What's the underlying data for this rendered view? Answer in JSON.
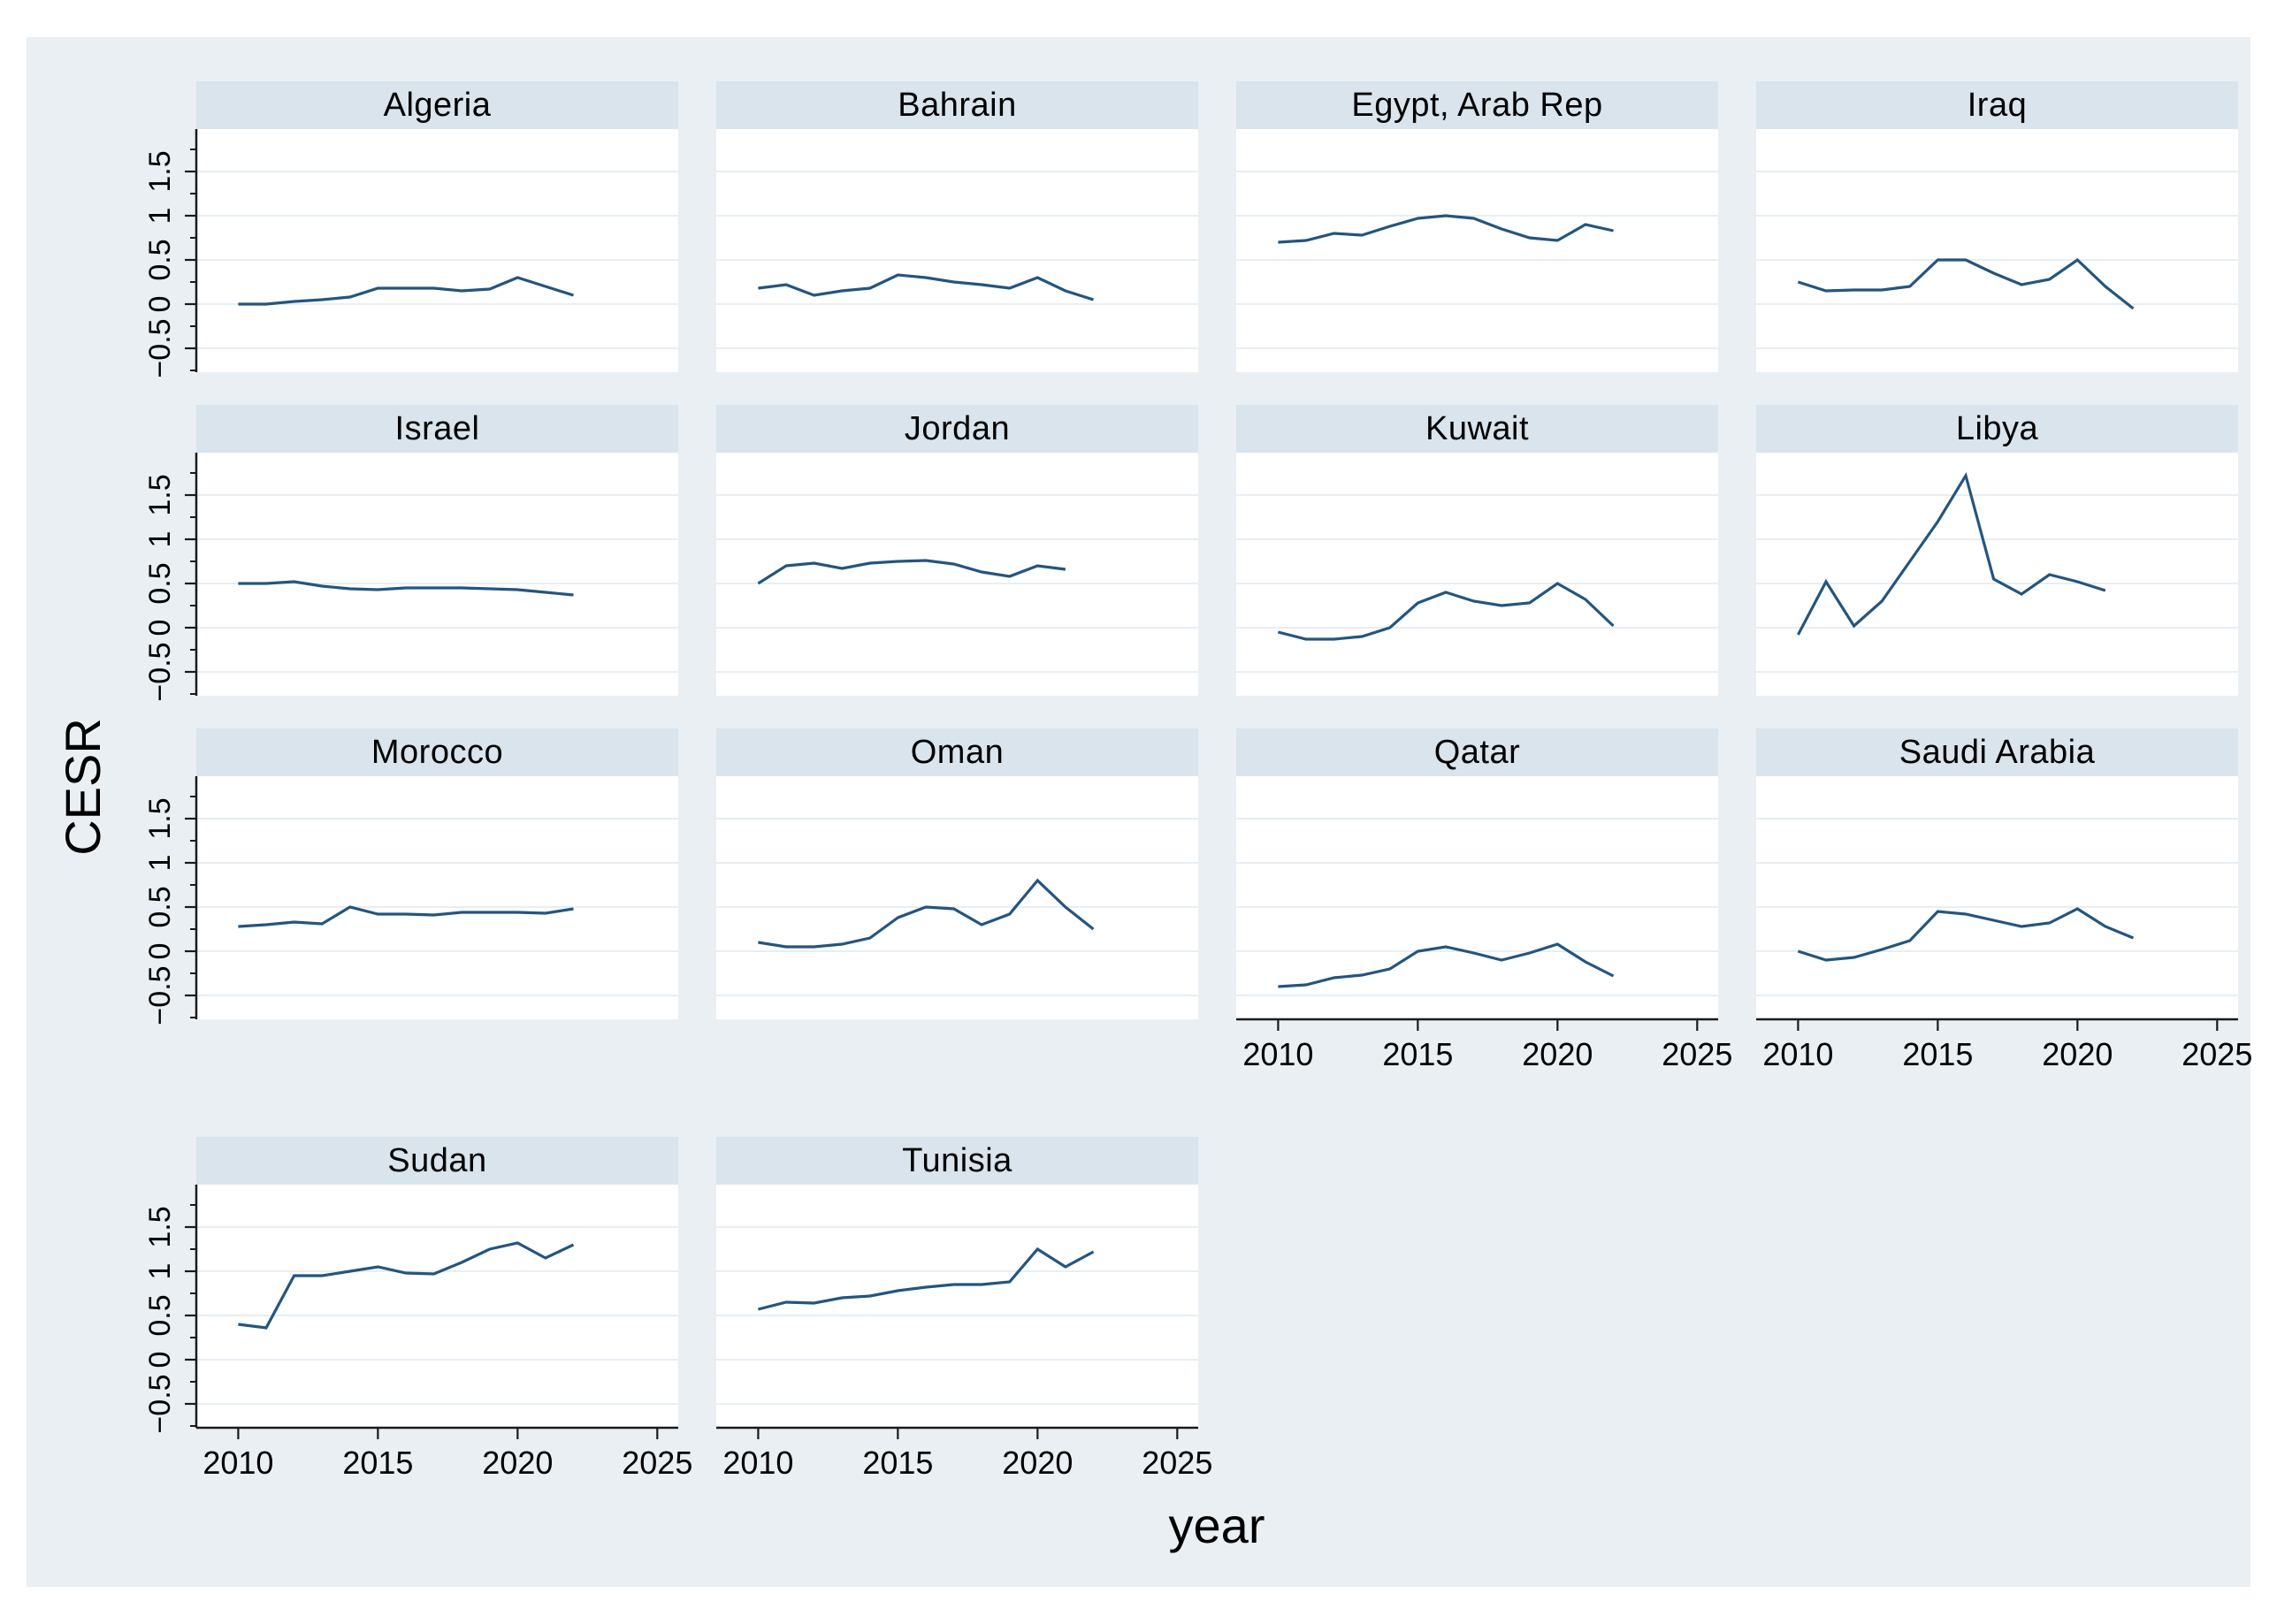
{
  "figure": {
    "ylabel": "CESR",
    "xlabel": "year",
    "background_color": "#e9eff3",
    "panel_header_color": "#d9e4ec",
    "plot_background_color": "#ffffff",
    "gridline_color": "#e7eef4",
    "line_color": "#24557f",
    "axis_color": "#1a1a1a"
  },
  "axes": {
    "x_tick_labels": [
      "2010",
      "2015",
      "2020",
      "2025"
    ],
    "x_tick_values": [
      2010,
      2015,
      2020,
      2025
    ],
    "y_tick_labels": [
      "−0.5",
      "0",
      "0.5",
      "1",
      "1.5"
    ],
    "y_tick_values": [
      -0.5,
      0,
      0.5,
      1,
      1.5
    ],
    "y_minor_tick_values": [
      -0.75,
      -0.25,
      0.25,
      0.75,
      1.25,
      1.75
    ],
    "y_gridline_values": [
      -0.5,
      0,
      0.5,
      1,
      1.5
    ]
  },
  "chart_data": {
    "type": "line",
    "title": "",
    "xlabel": "year",
    "ylabel": "CESR",
    "legend": "none",
    "grid": "horizontal",
    "x_plot_range": [
      2008.5,
      2025.75
    ],
    "y_plot_range": [
      -0.77,
      1.98
    ],
    "panels": [
      {
        "name": "Algeria",
        "years": [
          2010,
          2011,
          2012,
          2013,
          2014,
          2015,
          2016,
          2017,
          2018,
          2019,
          2020,
          2021,
          2022
        ],
        "values": [
          0.0,
          0.0,
          0.03,
          0.05,
          0.08,
          0.18,
          0.18,
          0.18,
          0.15,
          0.17,
          0.3,
          0.2,
          0.1
        ]
      },
      {
        "name": "Bahrain",
        "years": [
          2010,
          2011,
          2012,
          2013,
          2014,
          2015,
          2016,
          2017,
          2018,
          2019,
          2020,
          2021,
          2022
        ],
        "values": [
          0.18,
          0.22,
          0.1,
          0.15,
          0.18,
          0.33,
          0.3,
          0.25,
          0.22,
          0.18,
          0.3,
          0.15,
          0.05
        ]
      },
      {
        "name": "Egypt, Arab Rep",
        "years": [
          2010,
          2011,
          2012,
          2013,
          2014,
          2015,
          2016,
          2017,
          2018,
          2019,
          2020,
          2021,
          2022
        ],
        "values": [
          0.7,
          0.72,
          0.8,
          0.78,
          0.88,
          0.97,
          1.0,
          0.97,
          0.85,
          0.75,
          0.72,
          0.9,
          0.83
        ]
      },
      {
        "name": "Iraq",
        "years": [
          2010,
          2011,
          2012,
          2013,
          2014,
          2015,
          2016,
          2017,
          2018,
          2019,
          2020,
          2021,
          2022
        ],
        "values": [
          0.25,
          0.15,
          0.16,
          0.16,
          0.2,
          0.5,
          0.5,
          0.35,
          0.22,
          0.28,
          0.5,
          0.2,
          -0.05
        ]
      },
      {
        "name": "Israel",
        "years": [
          2010,
          2011,
          2012,
          2013,
          2014,
          2015,
          2016,
          2017,
          2018,
          2019,
          2020,
          2021,
          2022
        ],
        "values": [
          0.5,
          0.5,
          0.52,
          0.47,
          0.44,
          0.43,
          0.45,
          0.45,
          0.45,
          0.44,
          0.43,
          0.4,
          0.37
        ]
      },
      {
        "name": "Jordan",
        "years": [
          2010,
          2011,
          2012,
          2013,
          2014,
          2015,
          2016,
          2017,
          2018,
          2019,
          2020,
          2021
        ],
        "values": [
          0.5,
          0.7,
          0.73,
          0.67,
          0.73,
          0.75,
          0.76,
          0.72,
          0.63,
          0.58,
          0.7,
          0.66
        ]
      },
      {
        "name": "Kuwait",
        "years": [
          2010,
          2011,
          2012,
          2013,
          2014,
          2015,
          2016,
          2017,
          2018,
          2019,
          2020,
          2021,
          2022
        ],
        "values": [
          -0.05,
          -0.13,
          -0.13,
          -0.1,
          0.0,
          0.28,
          0.4,
          0.3,
          0.25,
          0.28,
          0.5,
          0.32,
          0.02
        ]
      },
      {
        "name": "Libya",
        "years": [
          2010,
          2011,
          2012,
          2013,
          2014,
          2015,
          2016,
          2017,
          2018,
          2019,
          2020,
          2021
        ],
        "values": [
          -0.08,
          0.52,
          0.02,
          0.3,
          0.75,
          1.2,
          1.72,
          0.55,
          0.38,
          0.6,
          0.52,
          0.42
        ]
      },
      {
        "name": "Morocco",
        "years": [
          2010,
          2011,
          2012,
          2013,
          2014,
          2015,
          2016,
          2017,
          2018,
          2019,
          2020,
          2021,
          2022
        ],
        "values": [
          0.28,
          0.3,
          0.33,
          0.31,
          0.5,
          0.42,
          0.42,
          0.41,
          0.44,
          0.44,
          0.44,
          0.43,
          0.48
        ]
      },
      {
        "name": "Oman",
        "years": [
          2010,
          2011,
          2012,
          2013,
          2014,
          2015,
          2016,
          2017,
          2018,
          2019,
          2020,
          2021,
          2022
        ],
        "values": [
          0.1,
          0.05,
          0.05,
          0.08,
          0.15,
          0.38,
          0.5,
          0.48,
          0.3,
          0.42,
          0.8,
          0.5,
          0.25
        ]
      },
      {
        "name": "Qatar",
        "years": [
          2010,
          2011,
          2012,
          2013,
          2014,
          2015,
          2016,
          2017,
          2018,
          2019,
          2020,
          2021,
          2022
        ],
        "values": [
          -0.4,
          -0.38,
          -0.3,
          -0.27,
          -0.2,
          0.0,
          0.05,
          -0.02,
          -0.1,
          -0.02,
          0.08,
          -0.12,
          -0.28
        ]
      },
      {
        "name": "Saudi Arabia",
        "years": [
          2010,
          2011,
          2012,
          2013,
          2014,
          2015,
          2016,
          2017,
          2018,
          2019,
          2020,
          2021,
          2022
        ],
        "values": [
          0.0,
          -0.1,
          -0.07,
          0.02,
          0.12,
          0.45,
          0.42,
          0.35,
          0.28,
          0.32,
          0.48,
          0.28,
          0.15
        ]
      },
      {
        "name": "Sudan",
        "years": [
          2010,
          2011,
          2012,
          2013,
          2014,
          2015,
          2016,
          2017,
          2018,
          2019,
          2020,
          2021,
          2022
        ],
        "values": [
          0.4,
          0.36,
          0.95,
          0.95,
          1.0,
          1.05,
          0.98,
          0.97,
          1.1,
          1.25,
          1.32,
          1.15,
          1.3
        ]
      },
      {
        "name": "Tunisia",
        "years": [
          2010,
          2011,
          2012,
          2013,
          2014,
          2015,
          2016,
          2017,
          2018,
          2019,
          2020,
          2021,
          2022
        ],
        "values": [
          0.57,
          0.65,
          0.64,
          0.7,
          0.72,
          0.78,
          0.82,
          0.85,
          0.85,
          0.88,
          1.25,
          1.05,
          1.22
        ]
      }
    ]
  }
}
